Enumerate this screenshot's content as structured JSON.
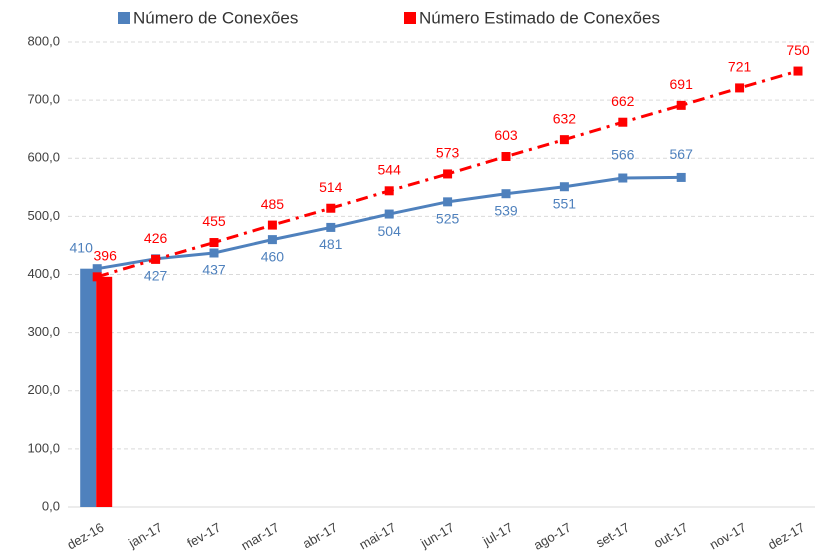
{
  "chart_data": {
    "type": "line",
    "categories": [
      "dez-16",
      "jan-17",
      "fev-17",
      "mar-17",
      "abr-17",
      "mai-17",
      "jun-17",
      "jul-17",
      "ago-17",
      "set-17",
      "out-17",
      "nov-17",
      "dez-17"
    ],
    "series": [
      {
        "name": "Número de Conexões",
        "color": "#4f81bd",
        "dash": "solid",
        "values": [
          410,
          427,
          437,
          460,
          481,
          504,
          525,
          539,
          551,
          566,
          567,
          null,
          null
        ]
      },
      {
        "name": "Número Estimado de Conexões",
        "color": "#ff0000",
        "dash": "dashdot",
        "values": [
          396,
          426,
          455,
          485,
          514,
          544,
          573,
          603,
          632,
          662,
          691,
          721,
          750
        ]
      }
    ],
    "bar_category_index": 0,
    "ylim": [
      0,
      800
    ],
    "yticks": [
      {
        "value": 0,
        "label": "0,0"
      },
      {
        "value": 100,
        "label": "100,0"
      },
      {
        "value": 200,
        "label": "200,0"
      },
      {
        "value": 300,
        "label": "300,0"
      },
      {
        "value": 400,
        "label": "400,0"
      },
      {
        "value": 500,
        "label": "500,0"
      },
      {
        "value": 600,
        "label": "600,0"
      },
      {
        "value": 700,
        "label": "700,0"
      },
      {
        "value": 800,
        "label": "800,0"
      }
    ],
    "grid": true,
    "legend": "top"
  }
}
